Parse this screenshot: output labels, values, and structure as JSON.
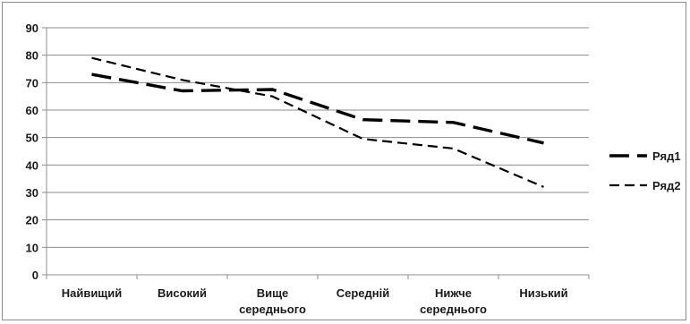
{
  "chart_data": {
    "type": "line",
    "title": "",
    "xlabel": "",
    "ylabel": "",
    "ylim": [
      0,
      90
    ],
    "yticks": [
      0,
      10,
      20,
      30,
      40,
      50,
      60,
      70,
      80,
      90
    ],
    "grid": true,
    "legend_position": "right",
    "categories": [
      [
        "Найвищий"
      ],
      [
        "Високий"
      ],
      [
        "Вище",
        "середнього"
      ],
      [
        "Середній"
      ],
      [
        "Нижче",
        "середнього"
      ],
      [
        "Низький"
      ]
    ],
    "series": [
      {
        "name": "Ряд1",
        "style": "long-dash",
        "color": "#000000",
        "values": [
          73,
          67,
          67.5,
          56.5,
          55.5,
          48
        ]
      },
      {
        "name": "Ряд2",
        "style": "short-dash",
        "color": "#000000",
        "values": [
          79,
          71,
          65,
          49.5,
          46,
          32
        ]
      }
    ]
  }
}
